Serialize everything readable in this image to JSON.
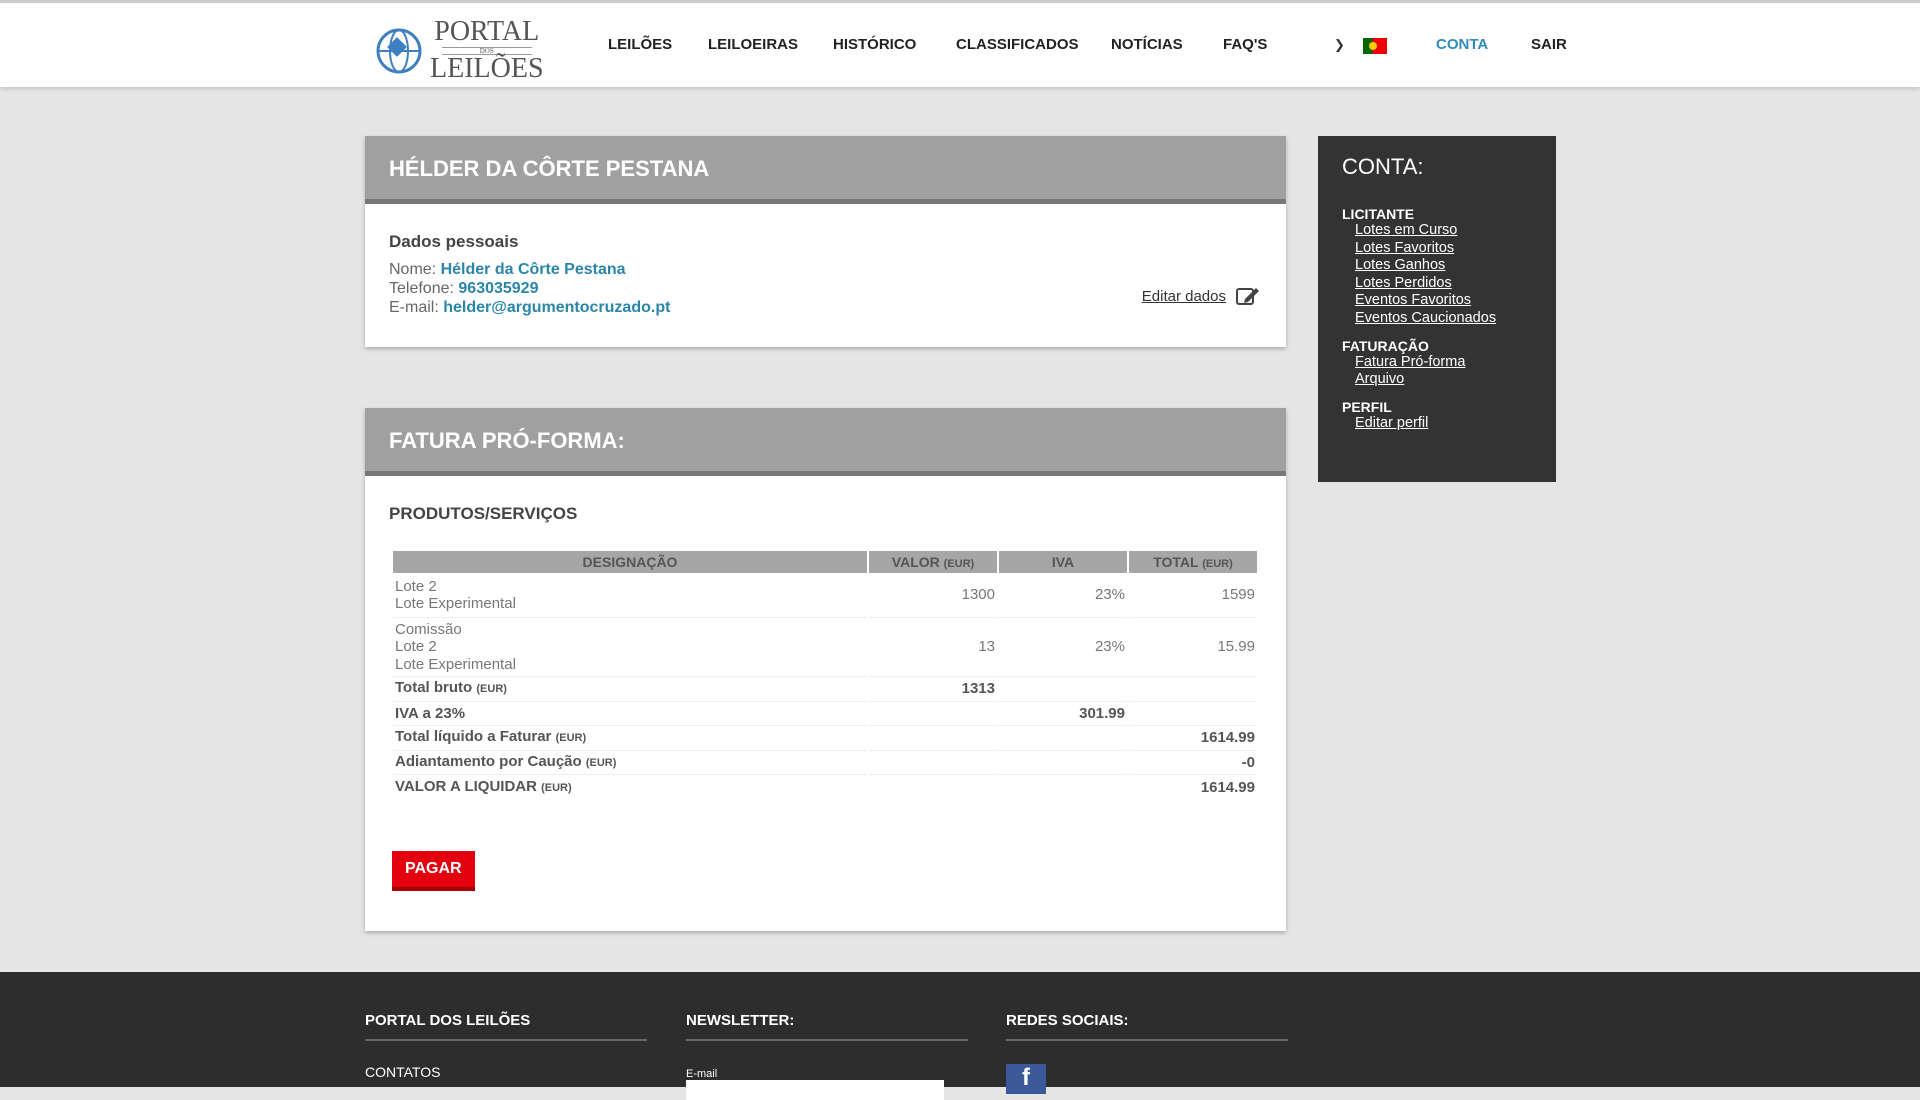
{
  "header": {
    "logo": {
      "line1": "PORTAL",
      "line2": "DOS",
      "line3": "LEILÕES"
    },
    "nav": [
      "LEILÕES",
      "LEILOEIRAS",
      "HISTÓRICO",
      "CLASSIFICADOS",
      "NOTÍCIAS",
      "FAQ'S"
    ],
    "account": "CONTA",
    "logout": "SAIR",
    "accent": "#2f8bbd"
  },
  "profile": {
    "title": "HÉLDER DA CÔRTE PESTANA",
    "section": "Dados pessoais",
    "name_label": "Nome:",
    "name": "Hélder da Côrte Pestana",
    "phone_label": "Telefone:",
    "phone": "963035929",
    "email_label": "E-mail:",
    "email": "helder@argumentocruzado.pt",
    "edit": "Editar dados"
  },
  "invoice": {
    "title": "FATURA PRÓ-FORMA:",
    "section": "PRODUTOS/SERVIÇOS",
    "columns": [
      {
        "label": "DESIGNAÇÃO",
        "unit": ""
      },
      {
        "label": "VALOR",
        "unit": "(EUR)"
      },
      {
        "label": "IVA",
        "unit": ""
      },
      {
        "label": "TOTAL",
        "unit": "(EUR)"
      }
    ],
    "rows": [
      {
        "lines": [
          "Lote 2",
          "Lote Experimental"
        ],
        "valor": "1300",
        "iva": "23%",
        "total": "1599"
      },
      {
        "lines": [
          "Comissão",
          "Lote 2",
          "Lote Experimental"
        ],
        "valor": "13",
        "iva": "23%",
        "total": "15.99"
      }
    ],
    "summary": {
      "bruto": {
        "label": "Total bruto",
        "unit": "(EUR)",
        "value": "1313"
      },
      "iva": {
        "label": "IVA a 23%",
        "value": "301.99"
      },
      "liquido": {
        "label": "Total líquido a Faturar",
        "unit": "(EUR)",
        "value": "1614.99"
      },
      "caucao": {
        "label": "Adiantamento por Caução",
        "unit": "(EUR)",
        "value": "-0"
      },
      "liquidar": {
        "label": "VALOR A LIQUIDAR",
        "unit": "(EUR)",
        "value": "1614.99"
      }
    },
    "pay": "PAGAR",
    "pay_color": "#e3000f"
  },
  "sidebar": {
    "title": "CONTA:",
    "groups": [
      {
        "title": "LICITANTE",
        "items": [
          "Lotes em Curso",
          "Lotes Favoritos",
          "Lotes Ganhos",
          "Lotes Perdidos",
          "Eventos Favoritos",
          "Eventos Caucionados"
        ]
      },
      {
        "title": "FATURAÇÃO",
        "items": [
          "Fatura Pró-forma",
          "Arquivo"
        ]
      },
      {
        "title": "PERFIL",
        "items": [
          "Editar perfil"
        ]
      }
    ]
  },
  "footer": {
    "col1": "PORTAL DOS LEILÕES",
    "col2": "NEWSLETTER:",
    "col3": "REDES SOCIAIS:",
    "contacts": "CONTATOS",
    "email_label": "E-mail",
    "facebook": "f"
  }
}
